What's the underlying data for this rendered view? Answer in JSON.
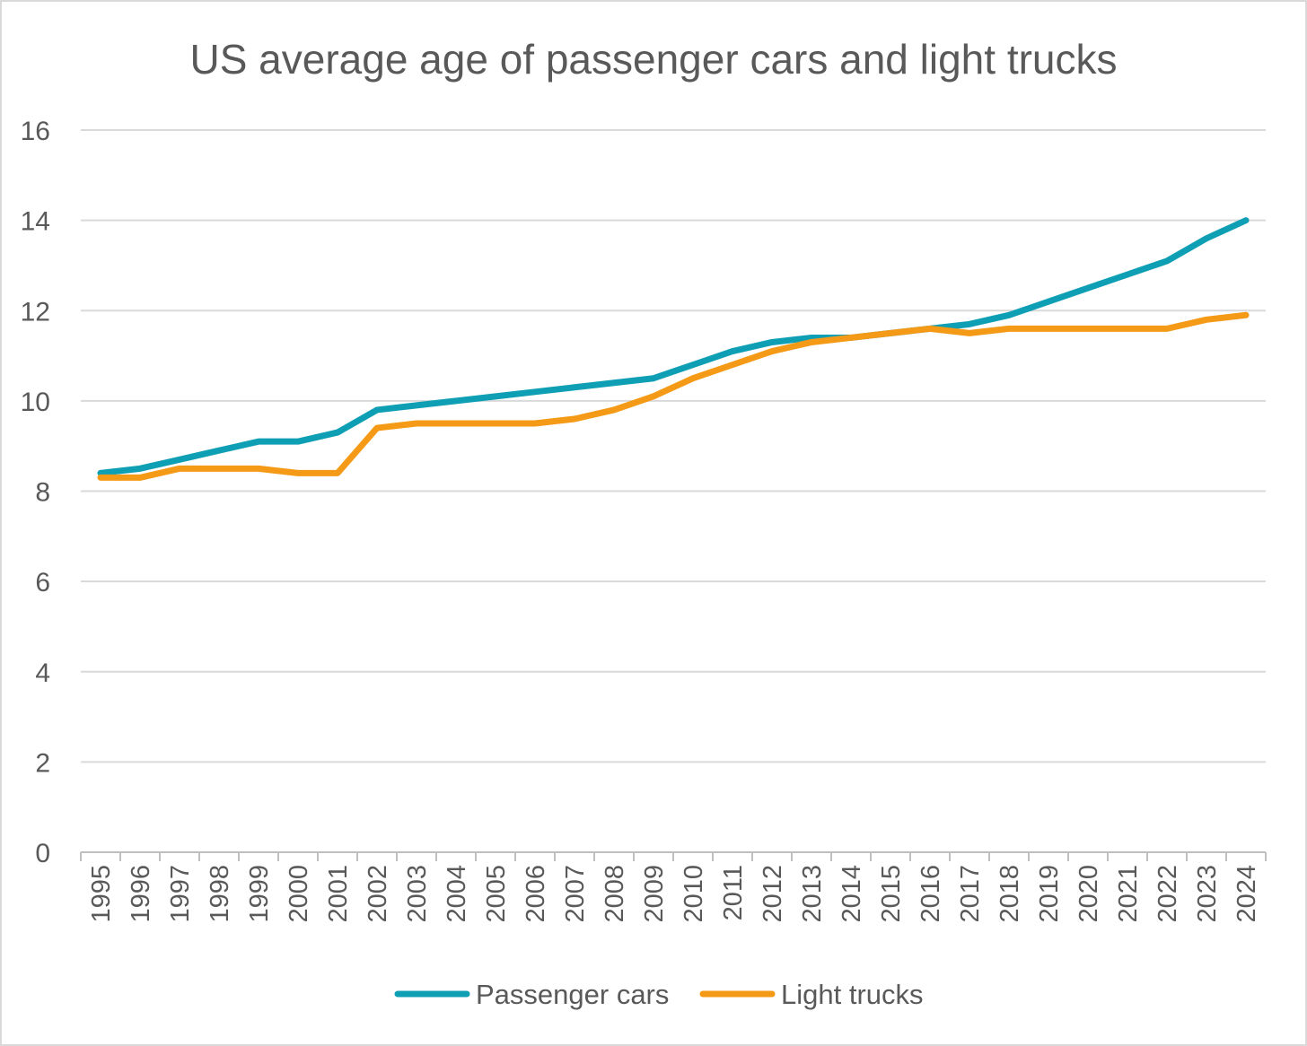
{
  "chart_data": {
    "type": "line",
    "title": "US average age of passenger cars and light trucks",
    "xlabel": "",
    "ylabel": "",
    "ylim": [
      0,
      16
    ],
    "yticks": [
      0,
      2,
      4,
      6,
      8,
      10,
      12,
      14,
      16
    ],
    "grid": true,
    "legend_position": "bottom",
    "categories": [
      "1995",
      "1996",
      "1997",
      "1998",
      "1999",
      "2000",
      "2001",
      "2002",
      "2003",
      "2004",
      "2005",
      "2006",
      "2007",
      "2008",
      "2009",
      "2010",
      "2011",
      "2012",
      "2013",
      "2014",
      "2015",
      "2016",
      "2017",
      "2018",
      "2019",
      "2020",
      "2021",
      "2022",
      "2023",
      "2024"
    ],
    "series": [
      {
        "name": "Passenger cars",
        "color": "#0f9fb5",
        "values": [
          8.4,
          8.5,
          8.7,
          8.9,
          9.1,
          9.1,
          9.3,
          9.8,
          9.9,
          10.0,
          10.1,
          10.2,
          10.3,
          10.4,
          10.5,
          10.8,
          11.1,
          11.3,
          11.4,
          11.4,
          11.5,
          11.6,
          11.7,
          11.9,
          12.2,
          12.5,
          12.8,
          13.1,
          13.6,
          14.0
        ]
      },
      {
        "name": "Light trucks",
        "color": "#f59a16",
        "values": [
          8.3,
          8.3,
          8.5,
          8.5,
          8.5,
          8.4,
          8.4,
          9.4,
          9.5,
          9.5,
          9.5,
          9.5,
          9.6,
          9.8,
          10.1,
          10.5,
          10.8,
          11.1,
          11.3,
          11.4,
          11.5,
          11.6,
          11.5,
          11.6,
          11.6,
          11.6,
          11.6,
          11.6,
          11.8,
          11.9
        ]
      }
    ]
  }
}
